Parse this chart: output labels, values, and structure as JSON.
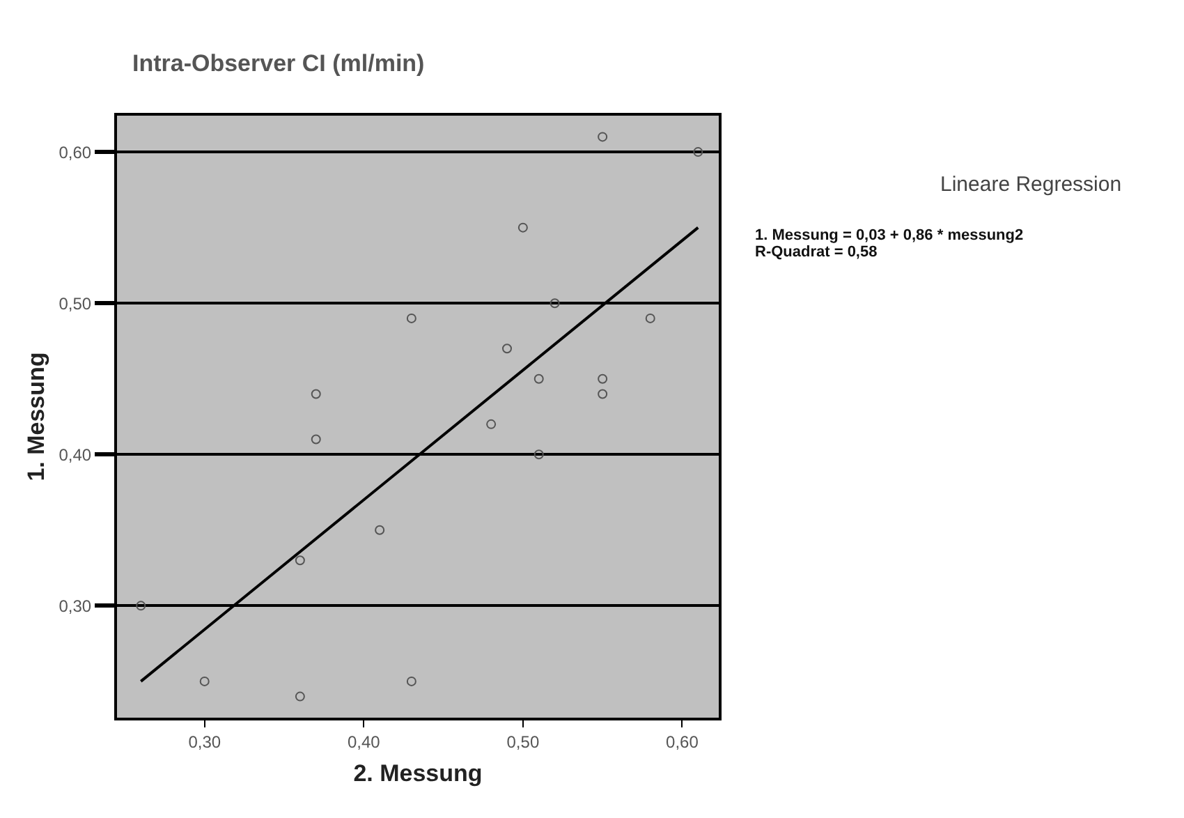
{
  "chart_data": {
    "type": "scatter",
    "title": "Intra-Observer CI (ml/min)",
    "xlabel": "2. Messung",
    "ylabel": "1. Messung",
    "series": [
      {
        "color": "#555555",
        "marker": "circle",
        "x": [
          0.55,
          0.61,
          0.5,
          0.52,
          0.43,
          0.58,
          0.49,
          0.51,
          0.55,
          0.55,
          0.37,
          0.37,
          0.48,
          0.51,
          0.41,
          0.36,
          0.26,
          0.3,
          0.36,
          0.43
        ],
        "values": [
          0.61,
          0.6,
          0.55,
          0.5,
          0.49,
          0.49,
          0.47,
          0.45,
          0.45,
          0.44,
          0.44,
          0.41,
          0.42,
          0.4,
          0.35,
          0.33,
          0.3,
          0.25,
          0.24,
          0.25
        ]
      },
      {
        "type": "line",
        "color": "#000000",
        "x": [
          0.26,
          0.61
        ],
        "values": [
          0.25,
          0.55
        ]
      }
    ],
    "xlim": [
      0.245,
      0.623
    ],
    "ylim": [
      0.226,
      0.624
    ],
    "xticks": [
      {
        "value": 0.3,
        "label": "0,30"
      },
      {
        "value": 0.4,
        "label": "0,40"
      },
      {
        "value": 0.5,
        "label": "0,50"
      },
      {
        "value": 0.6,
        "label": "0,60"
      }
    ],
    "yticks": [
      {
        "value": 0.3,
        "label": "0,30"
      },
      {
        "value": 0.4,
        "label": "0,40"
      },
      {
        "value": 0.5,
        "label": "0,50"
      },
      {
        "value": 0.6,
        "label": "0,60"
      }
    ],
    "grid": "y",
    "annotations": [
      "Lineare Regression",
      "1. Messung = 0,03 + 0,86 * messung2",
      "R-Quadrat = 0,58"
    ]
  }
}
